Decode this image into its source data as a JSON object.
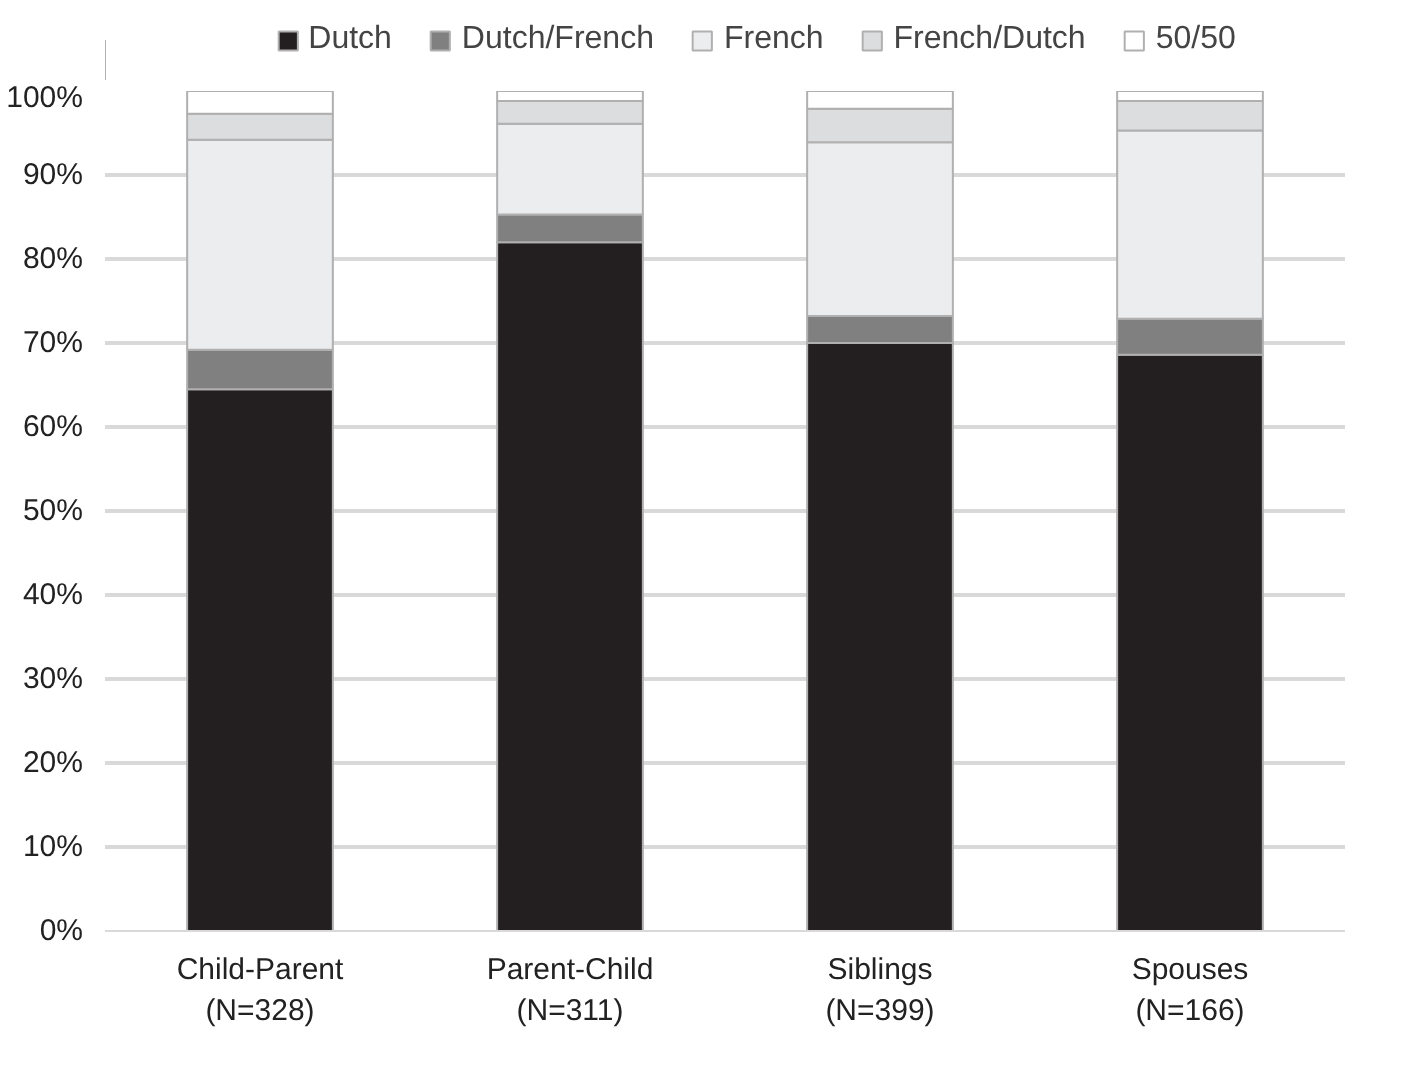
{
  "chart_data": {
    "type": "bar",
    "stacked": true,
    "categories": [
      "Child-Parent\n(N=328)",
      "Parent-Child\n(N=311)",
      "Siblings\n(N=399)",
      "Spouses\n(N=166)"
    ],
    "series": [
      {
        "name": "Dutch",
        "color": "#231f20",
        "values": [
          64.5,
          82.0,
          70.0,
          68.6
        ]
      },
      {
        "name": "Dutch/French",
        "color": "#808080",
        "values": [
          4.7,
          3.3,
          3.2,
          4.3
        ]
      },
      {
        "name": "French",
        "color": "#ecedee",
        "values": [
          25.0,
          10.8,
          20.7,
          22.4
        ]
      },
      {
        "name": "French/Dutch",
        "color": "#dcdddf",
        "values": [
          3.1,
          2.7,
          4.0,
          3.5
        ]
      },
      {
        "name": "50/50",
        "color": "#ffffff",
        "values": [
          2.7,
          1.2,
          2.1,
          1.2
        ]
      }
    ],
    "ylim": [
      0,
      100
    ],
    "yticks": [
      {
        "value": 0,
        "label": "0%"
      },
      {
        "value": 10,
        "label": "10%"
      },
      {
        "value": 20,
        "label": "20%"
      },
      {
        "value": 30,
        "label": "30%"
      },
      {
        "value": 40,
        "label": "40%"
      },
      {
        "value": 50,
        "label": "50%"
      },
      {
        "value": 60,
        "label": "60%"
      },
      {
        "value": 70,
        "label": "70%"
      },
      {
        "value": 80,
        "label": "80%"
      },
      {
        "value": 90,
        "label": "90%"
      },
      {
        "value": 100,
        "label": "100%"
      }
    ],
    "grid": "y",
    "legend": "top"
  }
}
